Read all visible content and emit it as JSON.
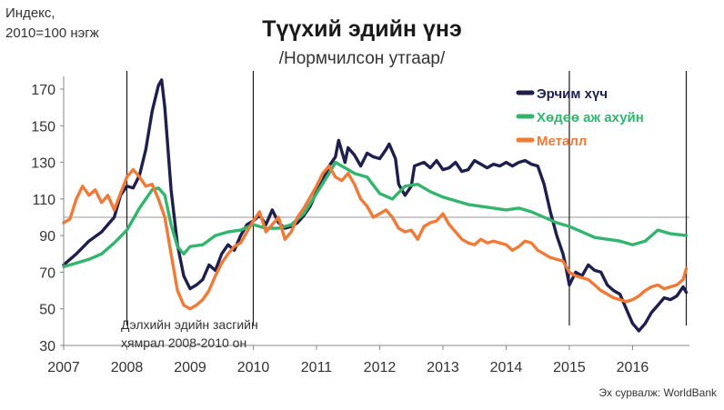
{
  "chart_data": {
    "type": "line",
    "title": "Түүхий эдийн үнэ",
    "subtitle": "/Нормчилсон утгаар/",
    "ylabel_line1": "Индекс,",
    "ylabel_line2": "2010=100 нэгж",
    "xlabel": "",
    "ylim": [
      30,
      180
    ],
    "xlim": [
      2007.0,
      2016.9
    ],
    "y_ticks": [
      30,
      50,
      70,
      90,
      110,
      130,
      150,
      170
    ],
    "x_ticks": [
      "2007",
      "2008",
      "2009",
      "2010",
      "2011",
      "2012",
      "2013",
      "2014",
      "2015",
      "2016"
    ],
    "grid": false,
    "legend": "top-right",
    "reference_line": 100,
    "annotation_line1": "Дэлхийн эдийн засгийн",
    "annotation_line2": "хямрал 2008-2010 он",
    "source": "Эх сурвалж: WorldBank",
    "vlines": [
      2008.0,
      2010.0,
      2015.0,
      2016.85
    ],
    "series": [
      {
        "name": "Эрчим хүч",
        "color": "#1e1f4d",
        "points": [
          [
            2007.0,
            74
          ],
          [
            2007.2,
            80
          ],
          [
            2007.4,
            87
          ],
          [
            2007.6,
            92
          ],
          [
            2007.8,
            100
          ],
          [
            2007.9,
            112
          ],
          [
            2008.0,
            117
          ],
          [
            2008.1,
            116
          ],
          [
            2008.2,
            123
          ],
          [
            2008.3,
            137
          ],
          [
            2008.4,
            158
          ],
          [
            2008.5,
            172
          ],
          [
            2008.55,
            175
          ],
          [
            2008.6,
            160
          ],
          [
            2008.7,
            115
          ],
          [
            2008.8,
            85
          ],
          [
            2008.9,
            68
          ],
          [
            2009.0,
            61
          ],
          [
            2009.1,
            63
          ],
          [
            2009.2,
            66
          ],
          [
            2009.3,
            74
          ],
          [
            2009.4,
            71
          ],
          [
            2009.5,
            80
          ],
          [
            2009.6,
            85
          ],
          [
            2009.7,
            82
          ],
          [
            2009.8,
            90
          ],
          [
            2009.9,
            96
          ],
          [
            2010.0,
            98
          ],
          [
            2010.1,
            101
          ],
          [
            2010.2,
            96
          ],
          [
            2010.3,
            104
          ],
          [
            2010.4,
            97
          ],
          [
            2010.5,
            94
          ],
          [
            2010.6,
            95
          ],
          [
            2010.7,
            97
          ],
          [
            2010.8,
            101
          ],
          [
            2010.9,
            106
          ],
          [
            2011.0,
            114
          ],
          [
            2011.1,
            120
          ],
          [
            2011.2,
            128
          ],
          [
            2011.3,
            133
          ],
          [
            2011.35,
            142
          ],
          [
            2011.45,
            130
          ],
          [
            2011.5,
            138
          ],
          [
            2011.6,
            134
          ],
          [
            2011.7,
            128
          ],
          [
            2011.8,
            135
          ],
          [
            2011.9,
            133
          ],
          [
            2012.0,
            132
          ],
          [
            2012.1,
            137
          ],
          [
            2012.15,
            140
          ],
          [
            2012.25,
            132
          ],
          [
            2012.3,
            118
          ],
          [
            2012.4,
            112
          ],
          [
            2012.5,
            117
          ],
          [
            2012.55,
            128
          ],
          [
            2012.7,
            130
          ],
          [
            2012.8,
            127
          ],
          [
            2012.9,
            131
          ],
          [
            2013.0,
            126
          ],
          [
            2013.1,
            127
          ],
          [
            2013.2,
            130
          ],
          [
            2013.3,
            125
          ],
          [
            2013.4,
            126
          ],
          [
            2013.5,
            131
          ],
          [
            2013.6,
            129
          ],
          [
            2013.7,
            127
          ],
          [
            2013.8,
            129
          ],
          [
            2013.9,
            128
          ],
          [
            2014.0,
            130
          ],
          [
            2014.1,
            128
          ],
          [
            2014.2,
            130
          ],
          [
            2014.3,
            131
          ],
          [
            2014.4,
            129
          ],
          [
            2014.5,
            128
          ],
          [
            2014.6,
            118
          ],
          [
            2014.7,
            103
          ],
          [
            2014.8,
            90
          ],
          [
            2014.9,
            80
          ],
          [
            2014.95,
            72
          ],
          [
            2015.0,
            63
          ],
          [
            2015.1,
            70
          ],
          [
            2015.2,
            68
          ],
          [
            2015.3,
            74
          ],
          [
            2015.4,
            71
          ],
          [
            2015.5,
            70
          ],
          [
            2015.6,
            63
          ],
          [
            2015.7,
            60
          ],
          [
            2015.8,
            58
          ],
          [
            2015.9,
            50
          ],
          [
            2016.0,
            42
          ],
          [
            2016.1,
            38
          ],
          [
            2016.2,
            42
          ],
          [
            2016.3,
            48
          ],
          [
            2016.4,
            52
          ],
          [
            2016.5,
            56
          ],
          [
            2016.6,
            55
          ],
          [
            2016.7,
            57
          ],
          [
            2016.8,
            62
          ],
          [
            2016.85,
            59
          ]
        ]
      },
      {
        "name": "Хөдөө аж ахуйн",
        "color": "#33b56e",
        "points": [
          [
            2007.0,
            73
          ],
          [
            2007.2,
            75
          ],
          [
            2007.4,
            77
          ],
          [
            2007.6,
            80
          ],
          [
            2007.8,
            86
          ],
          [
            2008.0,
            93
          ],
          [
            2008.2,
            105
          ],
          [
            2008.4,
            115
          ],
          [
            2008.5,
            116
          ],
          [
            2008.6,
            112
          ],
          [
            2008.7,
            96
          ],
          [
            2008.8,
            84
          ],
          [
            2008.9,
            80
          ],
          [
            2009.0,
            84
          ],
          [
            2009.2,
            85
          ],
          [
            2009.4,
            90
          ],
          [
            2009.6,
            92
          ],
          [
            2009.8,
            93
          ],
          [
            2010.0,
            96
          ],
          [
            2010.2,
            94
          ],
          [
            2010.4,
            94
          ],
          [
            2010.6,
            96
          ],
          [
            2010.8,
            102
          ],
          [
            2011.0,
            113
          ],
          [
            2011.2,
            124
          ],
          [
            2011.3,
            130
          ],
          [
            2011.4,
            128
          ],
          [
            2011.6,
            124
          ],
          [
            2011.8,
            122
          ],
          [
            2012.0,
            113
          ],
          [
            2012.2,
            110
          ],
          [
            2012.4,
            117
          ],
          [
            2012.6,
            118
          ],
          [
            2012.8,
            114
          ],
          [
            2013.0,
            111
          ],
          [
            2013.2,
            109
          ],
          [
            2013.4,
            107
          ],
          [
            2013.6,
            106
          ],
          [
            2013.8,
            105
          ],
          [
            2014.0,
            104
          ],
          [
            2014.2,
            105
          ],
          [
            2014.4,
            103
          ],
          [
            2014.6,
            100
          ],
          [
            2014.8,
            97
          ],
          [
            2015.0,
            95
          ],
          [
            2015.2,
            92
          ],
          [
            2015.4,
            89
          ],
          [
            2015.6,
            88
          ],
          [
            2015.8,
            87
          ],
          [
            2016.0,
            85
          ],
          [
            2016.2,
            87
          ],
          [
            2016.4,
            93
          ],
          [
            2016.6,
            91
          ],
          [
            2016.85,
            90
          ]
        ]
      },
      {
        "name": "Металл",
        "color": "#f07a38",
        "points": [
          [
            2007.0,
            97
          ],
          [
            2007.1,
            99
          ],
          [
            2007.2,
            110
          ],
          [
            2007.3,
            117
          ],
          [
            2007.4,
            112
          ],
          [
            2007.5,
            115
          ],
          [
            2007.6,
            108
          ],
          [
            2007.7,
            112
          ],
          [
            2007.8,
            104
          ],
          [
            2007.9,
            113
          ],
          [
            2008.0,
            122
          ],
          [
            2008.1,
            126
          ],
          [
            2008.2,
            122
          ],
          [
            2008.3,
            117
          ],
          [
            2008.4,
            118
          ],
          [
            2008.5,
            110
          ],
          [
            2008.6,
            100
          ],
          [
            2008.7,
            80
          ],
          [
            2008.8,
            60
          ],
          [
            2008.9,
            52
          ],
          [
            2009.0,
            50
          ],
          [
            2009.1,
            52
          ],
          [
            2009.2,
            55
          ],
          [
            2009.3,
            60
          ],
          [
            2009.4,
            68
          ],
          [
            2009.5,
            75
          ],
          [
            2009.6,
            80
          ],
          [
            2009.7,
            84
          ],
          [
            2009.8,
            86
          ],
          [
            2009.9,
            92
          ],
          [
            2010.0,
            98
          ],
          [
            2010.1,
            103
          ],
          [
            2010.2,
            92
          ],
          [
            2010.3,
            96
          ],
          [
            2010.4,
            100
          ],
          [
            2010.5,
            88
          ],
          [
            2010.6,
            92
          ],
          [
            2010.7,
            100
          ],
          [
            2010.8,
            105
          ],
          [
            2011.0,
            117
          ],
          [
            2011.1,
            124
          ],
          [
            2011.2,
            128
          ],
          [
            2011.3,
            122
          ],
          [
            2011.4,
            120
          ],
          [
            2011.5,
            124
          ],
          [
            2011.6,
            118
          ],
          [
            2011.7,
            110
          ],
          [
            2011.8,
            106
          ],
          [
            2011.9,
            100
          ],
          [
            2012.0,
            102
          ],
          [
            2012.1,
            104
          ],
          [
            2012.2,
            100
          ],
          [
            2012.3,
            94
          ],
          [
            2012.4,
            92
          ],
          [
            2012.5,
            93
          ],
          [
            2012.6,
            88
          ],
          [
            2012.7,
            95
          ],
          [
            2012.8,
            97
          ],
          [
            2012.9,
            98
          ],
          [
            2013.0,
            102
          ],
          [
            2013.1,
            96
          ],
          [
            2013.2,
            92
          ],
          [
            2013.3,
            88
          ],
          [
            2013.4,
            86
          ],
          [
            2013.5,
            85
          ],
          [
            2013.6,
            88
          ],
          [
            2013.7,
            86
          ],
          [
            2013.8,
            87
          ],
          [
            2013.9,
            86
          ],
          [
            2014.0,
            85
          ],
          [
            2014.1,
            82
          ],
          [
            2014.2,
            84
          ],
          [
            2014.3,
            87
          ],
          [
            2014.4,
            86
          ],
          [
            2014.5,
            82
          ],
          [
            2014.6,
            80
          ],
          [
            2014.7,
            78
          ],
          [
            2014.8,
            77
          ],
          [
            2014.9,
            76
          ],
          [
            2015.0,
            70
          ],
          [
            2015.1,
            68
          ],
          [
            2015.2,
            67
          ],
          [
            2015.3,
            66
          ],
          [
            2015.4,
            63
          ],
          [
            2015.5,
            60
          ],
          [
            2015.6,
            58
          ],
          [
            2015.7,
            56
          ],
          [
            2015.8,
            55
          ],
          [
            2015.9,
            54
          ],
          [
            2016.0,
            55
          ],
          [
            2016.1,
            57
          ],
          [
            2016.2,
            60
          ],
          [
            2016.3,
            62
          ],
          [
            2016.4,
            63
          ],
          [
            2016.5,
            61
          ],
          [
            2016.6,
            62
          ],
          [
            2016.7,
            63
          ],
          [
            2016.8,
            66
          ],
          [
            2016.85,
            72
          ]
        ]
      }
    ]
  }
}
